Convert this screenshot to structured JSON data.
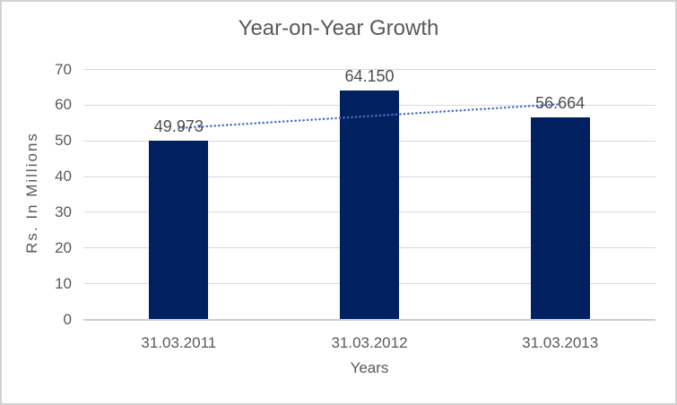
{
  "chart_data": {
    "type": "bar",
    "title": "Year-on-Year Growth",
    "categories": [
      "31.03.2011",
      "31.03.2012",
      "31.03.2013"
    ],
    "values": [
      49.973,
      64.15,
      56.664
    ],
    "data_labels": [
      "49.973",
      "64.150",
      "56.664"
    ],
    "xlabel": "Years",
    "ylabel": "Rs. In Millions",
    "ylim": [
      0,
      70
    ],
    "ytick_interval": 10,
    "ytick_labels": [
      "0",
      "10",
      "20",
      "30",
      "40",
      "50",
      "60",
      "70"
    ],
    "grid": true,
    "legend": "none",
    "trendline": {
      "type": "linear",
      "style": "dotted"
    },
    "colors": {
      "bar": "#002060",
      "trendline": "#4472c4",
      "gridline": "#d9d9d9",
      "axis_line": "#cfcfcf",
      "text": "#595959",
      "data_label": "#4d4d4d",
      "chart_border": "#d2d2d2",
      "background": "#ffffff"
    }
  }
}
